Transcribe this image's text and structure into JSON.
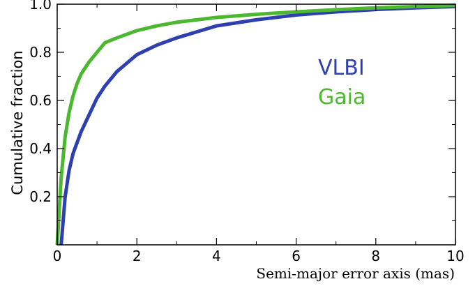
{
  "chart_data": {
    "type": "line",
    "title": "",
    "xlabel": "Semi-major error axis (mas)",
    "ylabel": "Cumulative fraction",
    "xlim": [
      0,
      10
    ],
    "ylim": [
      0,
      1.0
    ],
    "x_ticks": [
      0,
      2,
      4,
      6,
      8,
      10
    ],
    "x_tick_labels": [
      "0",
      "2",
      "4",
      "6",
      "8",
      "10"
    ],
    "y_ticks": [
      0.2,
      0.4,
      0.6,
      0.8,
      1.0
    ],
    "y_tick_labels": [
      "0.2",
      "0.4",
      "0.6",
      "0.8",
      "1.0"
    ],
    "grid": false,
    "legend_placement": "center-right",
    "series": [
      {
        "name": "VLBI",
        "color": "#2e3fb0",
        "x": [
          0.1,
          0.2,
          0.3,
          0.4,
          0.6,
          0.8,
          1.0,
          1.2,
          1.5,
          2.0,
          2.5,
          3.0,
          4.0,
          5.0,
          6.0,
          7.0,
          8.0,
          9.0,
          10.0
        ],
        "y": [
          0.0,
          0.2,
          0.31,
          0.38,
          0.47,
          0.54,
          0.61,
          0.66,
          0.72,
          0.79,
          0.83,
          0.86,
          0.91,
          0.935,
          0.955,
          0.968,
          0.978,
          0.985,
          0.99
        ]
      },
      {
        "name": "Gaia",
        "color": "#4cb82f",
        "x": [
          0.0,
          0.1,
          0.2,
          0.3,
          0.4,
          0.5,
          0.6,
          0.8,
          1.0,
          1.2,
          1.5,
          2.0,
          2.5,
          3.0,
          4.0,
          5.0,
          6.0,
          7.0,
          8.0,
          9.0,
          10.0
        ],
        "y": [
          0.0,
          0.28,
          0.45,
          0.55,
          0.62,
          0.67,
          0.71,
          0.76,
          0.8,
          0.84,
          0.86,
          0.89,
          0.91,
          0.925,
          0.945,
          0.958,
          0.968,
          0.977,
          0.985,
          0.99,
          0.995
        ]
      }
    ]
  }
}
